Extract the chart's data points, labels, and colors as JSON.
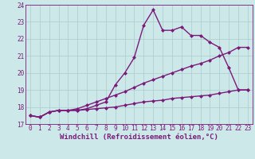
{
  "xlabel": "Windchill (Refroidissement éolien,°C)",
  "bg_color": "#cce8e8",
  "line_color": "#7b1a7b",
  "grid_color": "#b0d0d0",
  "axis_color": "#7b1a7b",
  "xlim": [
    -0.5,
    23.5
  ],
  "ylim": [
    17,
    24
  ],
  "xticks": [
    0,
    1,
    2,
    3,
    4,
    5,
    6,
    7,
    8,
    9,
    10,
    11,
    12,
    13,
    14,
    15,
    16,
    17,
    18,
    19,
    20,
    21,
    22,
    23
  ],
  "yticks": [
    17,
    18,
    19,
    20,
    21,
    22,
    23,
    24
  ],
  "series1_x": [
    0,
    1,
    2,
    3,
    4,
    5,
    6,
    7,
    8,
    9,
    10,
    11,
    12,
    13,
    14,
    15,
    16,
    17,
    18,
    19,
    20,
    21,
    22,
    23
  ],
  "series1_y": [
    17.5,
    17.4,
    17.7,
    17.8,
    17.8,
    17.8,
    17.9,
    18.1,
    18.3,
    19.3,
    20.0,
    20.9,
    22.8,
    23.7,
    22.5,
    22.5,
    22.7,
    22.2,
    22.2,
    21.8,
    21.5,
    20.3,
    19.0,
    19.0
  ],
  "series2_x": [
    0,
    1,
    2,
    3,
    4,
    5,
    6,
    7,
    8,
    9,
    10,
    11,
    12,
    13,
    14,
    15,
    16,
    17,
    18,
    19,
    20,
    21,
    22,
    23
  ],
  "series2_y": [
    17.5,
    17.4,
    17.7,
    17.8,
    17.8,
    17.9,
    18.1,
    18.3,
    18.5,
    18.7,
    18.9,
    19.15,
    19.4,
    19.6,
    19.8,
    20.0,
    20.2,
    20.4,
    20.55,
    20.75,
    21.0,
    21.2,
    21.5,
    21.5
  ],
  "series3_x": [
    0,
    1,
    2,
    3,
    4,
    5,
    6,
    7,
    8,
    9,
    10,
    11,
    12,
    13,
    14,
    15,
    16,
    17,
    18,
    19,
    20,
    21,
    22,
    23
  ],
  "series3_y": [
    17.5,
    17.4,
    17.7,
    17.8,
    17.8,
    17.8,
    17.85,
    17.9,
    17.95,
    18.0,
    18.1,
    18.2,
    18.3,
    18.35,
    18.4,
    18.5,
    18.55,
    18.6,
    18.65,
    18.7,
    18.8,
    18.9,
    19.0,
    19.0
  ],
  "marker": "D",
  "markersize": 2.5,
  "linewidth": 1.0,
  "tick_fontsize": 5.5,
  "label_fontsize": 6.5
}
